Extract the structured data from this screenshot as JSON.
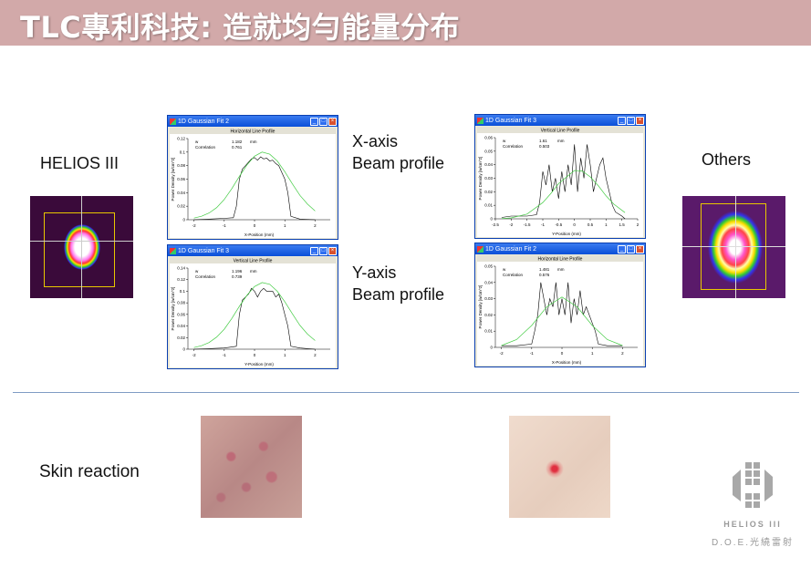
{
  "title": "TLC專利科技: 造就均勻能量分布",
  "labels": {
    "left_device": "HELIOS III",
    "right_device": "Others",
    "x_axis": "X-axis",
    "x_beam": "Beam profile",
    "y_axis": "Y-axis",
    "y_beam": "Beam profile",
    "skin": "Skin reaction"
  },
  "logo": {
    "brand": "HELIOS III",
    "tagline": "D.O.E.光繞雷射",
    "color": "#9a9a9a"
  },
  "colors": {
    "title_bar": "#d2a9a9",
    "measured": "#000000",
    "fit": "#44cc44",
    "divider": "#7f9cc4"
  },
  "chart_data": [
    {
      "type": "line",
      "window_title": "1D Gaussian Fit 2",
      "title": "Horizontal Line Profile",
      "w_label": "w",
      "w": "1.182",
      "w_unit": "mm",
      "corr_label": "Correlation",
      "corr": "0.761",
      "xlabel": "X-Position (mm)",
      "ylabel": "Power Density [w/cm^2]",
      "xlim": [
        -2.2,
        2.5
      ],
      "ylim": [
        0,
        0.12
      ],
      "xticks": [
        -2,
        -1,
        0,
        1,
        2
      ],
      "yticks": [
        0,
        0.02,
        0.04,
        0.06,
        0.08,
        0.1,
        0.12
      ],
      "series": [
        {
          "kind": "measured",
          "x": [
            -2,
            -1.5,
            -1,
            -0.7,
            -0.6,
            -0.5,
            -0.4,
            -0.3,
            -0.2,
            -0.1,
            0,
            0.1,
            0.2,
            0.3,
            0.4,
            0.5,
            0.6,
            0.7,
            0.8,
            0.9,
            1,
            1.1,
            1.2,
            1.5,
            2
          ],
          "y": [
            0,
            0.001,
            0.002,
            0.003,
            0.02,
            0.06,
            0.075,
            0.08,
            0.085,
            0.09,
            0.092,
            0.088,
            0.093,
            0.09,
            0.091,
            0.087,
            0.088,
            0.083,
            0.08,
            0.07,
            0.06,
            0.04,
            0.005,
            0.001,
            0
          ]
        },
        {
          "kind": "fit",
          "x": [
            -2,
            -1.75,
            -1.5,
            -1.25,
            -1,
            -0.75,
            -0.5,
            -0.25,
            0,
            0.25,
            0.5,
            0.75,
            1,
            1.25,
            1.5,
            1.75,
            2
          ],
          "y": [
            0.0024,
            0.0051,
            0.01,
            0.018,
            0.03,
            0.046,
            0.064,
            0.081,
            0.094,
            0.1,
            0.097,
            0.087,
            0.071,
            0.053,
            0.036,
            0.023,
            0.013
          ]
        }
      ]
    },
    {
      "type": "line",
      "window_title": "1D Gaussian Fit 3",
      "title": "Vertical Line Profile",
      "w_label": "w",
      "w": "1.196",
      "w_unit": "mm",
      "corr_label": "Correlation",
      "corr": "0.739",
      "xlabel": "Y-Position (mm)",
      "ylabel": "Power Density [w/cm^2]",
      "xlim": [
        -2.2,
        2.5
      ],
      "ylim": [
        0,
        0.14
      ],
      "xticks": [
        -2,
        -1,
        0,
        1,
        2
      ],
      "yticks": [
        0,
        0.02,
        0.04,
        0.06,
        0.08,
        0.1,
        0.12,
        0.14
      ],
      "series": [
        {
          "kind": "measured",
          "x": [
            -2,
            -1,
            -0.6,
            -0.5,
            -0.4,
            -0.3,
            -0.2,
            -0.1,
            0,
            0.1,
            0.2,
            0.3,
            0.4,
            0.5,
            0.6,
            0.7,
            0.8,
            0.9,
            1,
            1.1,
            1.2,
            1.5,
            2
          ],
          "y": [
            0,
            0.002,
            0.005,
            0.06,
            0.085,
            0.09,
            0.095,
            0.105,
            0.1,
            0.09,
            0.1,
            0.105,
            0.1,
            0.1,
            0.1,
            0.09,
            0.095,
            0.08,
            0.06,
            0.04,
            0.005,
            0.002,
            0
          ]
        },
        {
          "kind": "fit",
          "x": [
            -2,
            -1.75,
            -1.5,
            -1.25,
            -1,
            -0.75,
            -0.5,
            -0.25,
            0,
            0.25,
            0.5,
            0.75,
            1,
            1.25,
            1.5,
            1.75,
            2
          ],
          "y": [
            0.0028,
            0.0059,
            0.0115,
            0.021,
            0.0345,
            0.053,
            0.074,
            0.093,
            0.108,
            0.115,
            0.112,
            0.1,
            0.082,
            0.061,
            0.041,
            0.026,
            0.015
          ]
        }
      ]
    },
    {
      "type": "line",
      "window_title": "1D Gaussian Fit 3",
      "title": "Vertical Line Profile",
      "w_label": "w",
      "w": "1.61",
      "w_unit": "mm",
      "corr_label": "Correlation",
      "corr": "0.503",
      "xlabel": "Y-Position (mm)",
      "ylabel": "Power Density [w/cm^2]",
      "xlim": [
        -2.5,
        2
      ],
      "ylim": [
        0,
        0.06
      ],
      "xticks": [
        -2.5,
        -2,
        -1.5,
        -1,
        -0.5,
        0,
        0.5,
        1,
        1.5,
        2
      ],
      "yticks": [
        0,
        0.01,
        0.02,
        0.03,
        0.04,
        0.05,
        0.06
      ],
      "series": [
        {
          "kind": "measured",
          "x": [
            -2.3,
            -2,
            -1.5,
            -1.2,
            -1.1,
            -1,
            -0.9,
            -0.8,
            -0.7,
            -0.6,
            -0.5,
            -0.4,
            -0.3,
            -0.2,
            -0.1,
            0,
            0.1,
            0.2,
            0.3,
            0.4,
            0.5,
            0.6,
            0.7,
            0.8,
            0.9,
            1,
            1.1,
            1.2,
            1.3,
            1.5,
            1.6
          ],
          "y": [
            0.001,
            0.002,
            0.002,
            0.003,
            0.012,
            0.035,
            0.025,
            0.04,
            0.02,
            0.03,
            0.015,
            0.035,
            0.02,
            0.04,
            0.025,
            0.055,
            0.02,
            0.045,
            0.03,
            0.055,
            0.04,
            0.02,
            0.03,
            0.04,
            0.045,
            0.03,
            0.02,
            0.01,
            0.005,
            0.002,
            0
          ]
        },
        {
          "kind": "fit",
          "x": [
            -2.3,
            -2,
            -1.5,
            -1,
            -0.75,
            -0.5,
            0,
            0.25,
            0.5,
            0.75,
            1,
            1.25,
            1.6
          ],
          "y": [
            0.0002,
            0.0007,
            0.0035,
            0.012,
            0.0186,
            0.026,
            0.0357,
            0.0353,
            0.031,
            0.0246,
            0.017,
            0.0108,
            0.0046
          ]
        }
      ]
    },
    {
      "type": "line",
      "window_title": "1D Gaussian Fit 2",
      "title": "Horizontal Line Profile",
      "w_label": "w",
      "w": "1.481",
      "w_unit": "mm",
      "corr_label": "Correlation",
      "corr": "0.576",
      "xlabel": "X-Position (mm)",
      "ylabel": "Power Density [w/cm^2]",
      "xlim": [
        -2.2,
        2.5
      ],
      "ylim": [
        0,
        0.05
      ],
      "xticks": [
        -2,
        -1,
        0,
        1,
        2
      ],
      "yticks": [
        0,
        0.01,
        0.02,
        0.03,
        0.04,
        0.05
      ],
      "series": [
        {
          "kind": "measured",
          "x": [
            -2,
            -1.5,
            -1,
            -0.9,
            -0.8,
            -0.7,
            -0.6,
            -0.5,
            -0.4,
            -0.3,
            -0.2,
            -0.1,
            0,
            0.1,
            0.2,
            0.3,
            0.4,
            0.5,
            0.6,
            0.7,
            0.8,
            0.9,
            1,
            1.1,
            1.2,
            1.5,
            2
          ],
          "y": [
            0.001,
            0.001,
            0.002,
            0.01,
            0.02,
            0.04,
            0.03,
            0.02,
            0.03,
            0.025,
            0.04,
            0.02,
            0.03,
            0.02,
            0.04,
            0.015,
            0.03,
            0.02,
            0.035,
            0.02,
            0.025,
            0.02,
            0.015,
            0.01,
            0.002,
            0.001,
            0.001
          ]
        },
        {
          "kind": "fit",
          "x": [
            -2,
            -1.5,
            -1,
            -0.5,
            0,
            0.5,
            1,
            1.5,
            2
          ],
          "y": [
            0.0011,
            0.0048,
            0.0135,
            0.025,
            0.031,
            0.025,
            0.0135,
            0.0048,
            0.0011
          ]
        }
      ]
    }
  ]
}
